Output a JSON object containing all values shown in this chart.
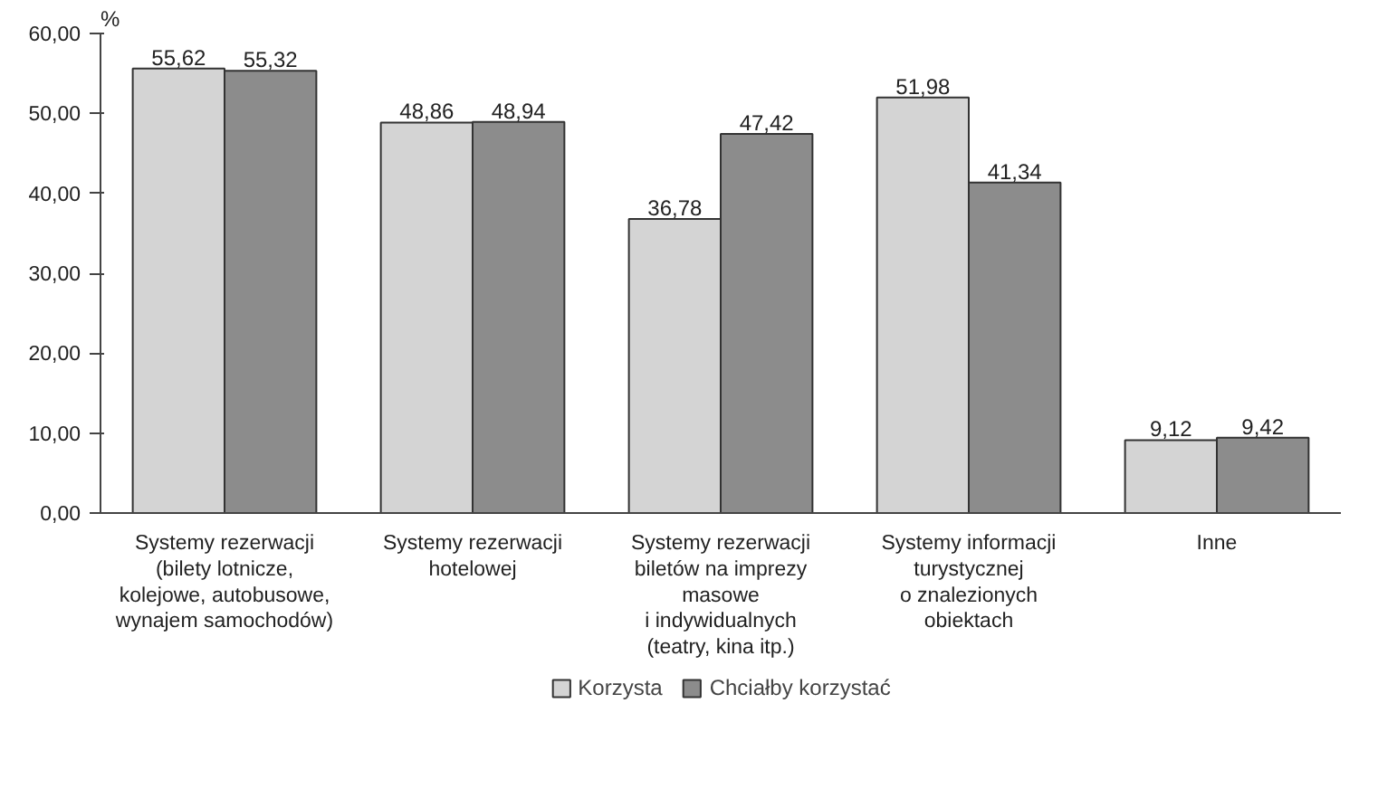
{
  "chart_data": {
    "type": "bar",
    "ylabel": "%",
    "categories": [
      "Systemy rezerwacji\n(bilety lotnicze,\nkolejowe, autobusowe,\nwynajem samochodów)",
      "Systemy rezerwacji\nhotelowej",
      "Systemy rezerwacji\nbiletów na imprezy\nmasowe\ni indywidualnych\n(teatry, kina itp.)",
      "Systemy informacji\nturystycznej\no znalezionych\nobiektach",
      "Inne"
    ],
    "series": [
      {
        "name": "Korzysta",
        "color": "#d4d4d4",
        "values": [
          55.62,
          48.86,
          36.78,
          51.98,
          9.12
        ],
        "value_labels": [
          "55,62",
          "48,86",
          "36,78",
          "51,98",
          "9,12"
        ]
      },
      {
        "name": "Chciałby korzystać",
        "color": "#8c8c8c",
        "values": [
          55.32,
          48.94,
          47.42,
          41.34,
          9.42
        ],
        "value_labels": [
          "55,32",
          "48,94",
          "47,42",
          "41,34",
          "9,42"
        ]
      }
    ],
    "ylim": [
      0,
      60
    ],
    "yticks": [
      {
        "value": 0,
        "label": "0,00"
      },
      {
        "value": 10,
        "label": "10,00"
      },
      {
        "value": 20,
        "label": "20,00"
      },
      {
        "value": 30,
        "label": "30,00"
      },
      {
        "value": 40,
        "label": "40,00"
      },
      {
        "value": 50,
        "label": "50,00"
      },
      {
        "value": 60,
        "label": "60,00"
      }
    ],
    "grid": false,
    "legend": "bottom"
  }
}
